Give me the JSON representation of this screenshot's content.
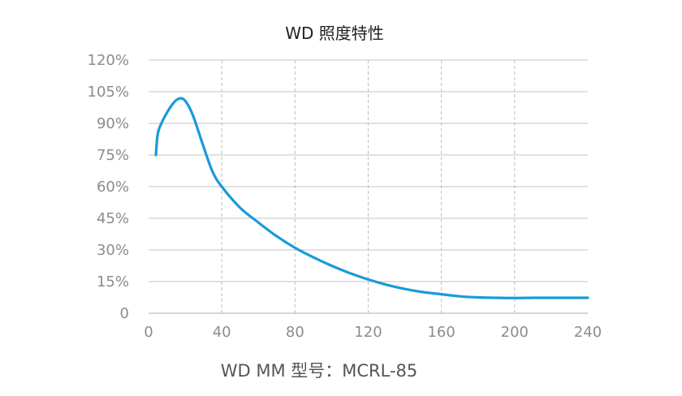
{
  "chart_data": {
    "type": "line",
    "title": "WD 照度特性",
    "caption": "WD MM 型号：MCRL-85",
    "xlabel": "",
    "ylabel": "",
    "xlim": [
      0,
      240
    ],
    "ylim": [
      0,
      120
    ],
    "x_ticks": [
      0,
      40,
      80,
      120,
      160,
      200,
      240
    ],
    "x_tick_labels": [
      "0",
      "40",
      "80",
      "120",
      "160",
      "200",
      "240"
    ],
    "y_ticks": [
      0,
      15,
      30,
      45,
      60,
      75,
      90,
      105,
      120
    ],
    "y_tick_labels": [
      "0",
      "15%",
      "30%",
      "45%",
      "60%",
      "75%",
      "90%",
      "105%",
      "120%"
    ],
    "grid": {
      "horizontal": true,
      "vertical_dashed": true
    },
    "legend": "none",
    "series": [
      {
        "color": "#1a9ad9",
        "x": [
          4,
          5,
          7,
          10,
          13,
          16,
          19,
          22,
          25,
          30,
          35,
          40,
          50,
          60,
          70,
          80,
          90,
          100,
          110,
          120,
          130,
          140,
          150,
          160,
          170,
          180,
          190,
          200,
          210,
          220,
          230,
          240
        ],
        "y": [
          75,
          85,
          90,
          95,
          99,
          101.5,
          101.5,
          98,
          92,
          79,
          67,
          60,
          50,
          43,
          36.5,
          31,
          26.5,
          22.5,
          19,
          16,
          13.5,
          11.5,
          10,
          9,
          8,
          7.5,
          7.3,
          7.2,
          7.3,
          7.3,
          7.3,
          7.3
        ]
      }
    ]
  }
}
